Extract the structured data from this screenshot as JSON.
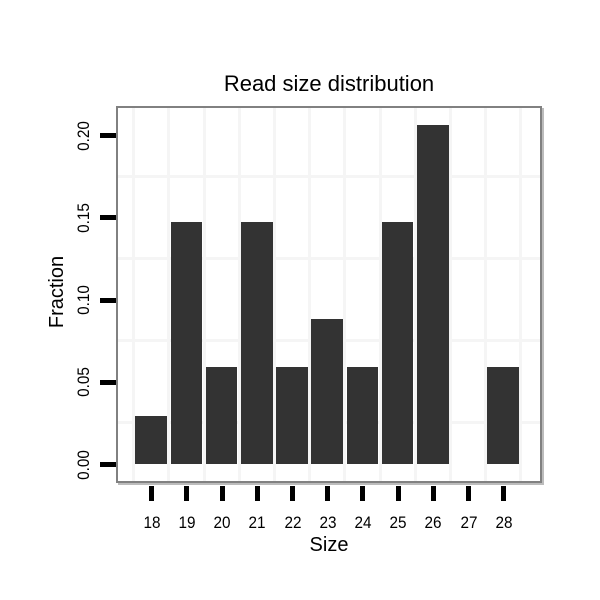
{
  "chart_data": {
    "type": "bar",
    "title": "Read size distribution",
    "xlabel": "Size",
    "ylabel": "Fraction",
    "categories": [
      "18",
      "19",
      "20",
      "21",
      "22",
      "23",
      "24",
      "25",
      "26",
      "27",
      "28"
    ],
    "values": [
      0.0294,
      0.1471,
      0.0588,
      0.1471,
      0.0588,
      0.0882,
      0.0588,
      0.1471,
      0.2059,
      0,
      0.0588
    ],
    "y_tick_labels": [
      "0.00",
      "0.05",
      "0.10",
      "0.15",
      "0.20"
    ],
    "y_tick_values": [
      0,
      0.05,
      0.1,
      0.15,
      0.2
    ],
    "ylim": [
      -0.011,
      0.2165
    ],
    "h_gridlines": [
      0.025,
      0.075,
      0.125,
      0.175
    ],
    "grid": "on",
    "legend": "none",
    "bar_color": "#333333",
    "grid_color": "#f5f5f5",
    "panel_border_color": "#818181",
    "tick_color": "#000000",
    "text_color": "#000000",
    "background_color": "#ffffff"
  }
}
